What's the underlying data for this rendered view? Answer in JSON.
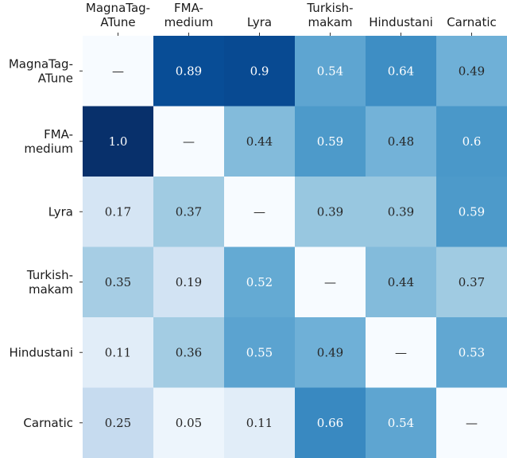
{
  "chart_data": {
    "type": "heatmap",
    "title": "",
    "xlabel": "",
    "ylabel": "",
    "x_labels": [
      [
        "MagnaTag-",
        "ATune"
      ],
      [
        "FMA-",
        "medium"
      ],
      [
        "Lyra"
      ],
      [
        "Turkish-",
        "makam"
      ],
      [
        "Hindustani"
      ],
      [
        "Carnatic"
      ]
    ],
    "y_labels": [
      [
        "MagnaTag-",
        "ATune"
      ],
      [
        "FMA-",
        "medium"
      ],
      [
        "Lyra"
      ],
      [
        "Turkish-",
        "makam"
      ],
      [
        "Hindustani"
      ],
      [
        "Carnatic"
      ]
    ],
    "values": [
      [
        null,
        0.89,
        0.9,
        0.54,
        0.64,
        0.49
      ],
      [
        1.0,
        null,
        0.44,
        0.59,
        0.48,
        0.6
      ],
      [
        0.17,
        0.37,
        null,
        0.39,
        0.39,
        0.59
      ],
      [
        0.35,
        0.19,
        0.52,
        null,
        0.44,
        0.37
      ],
      [
        0.11,
        0.36,
        0.55,
        0.49,
        null,
        0.53
      ],
      [
        0.25,
        0.05,
        0.11,
        0.66,
        0.54,
        null
      ]
    ],
    "cell_labels": [
      [
        "—",
        "0.89",
        "0.9",
        "0.54",
        "0.64",
        "0.49"
      ],
      [
        "1.0",
        "—",
        "0.44",
        "0.59",
        "0.48",
        "0.6"
      ],
      [
        "0.17",
        "0.37",
        "—",
        "0.39",
        "0.39",
        "0.59"
      ],
      [
        "0.35",
        "0.19",
        "0.52",
        "—",
        "0.44",
        "0.37"
      ],
      [
        "0.11",
        "0.36",
        "0.55",
        "0.49",
        "—",
        "0.53"
      ],
      [
        "0.25",
        "0.05",
        "0.11",
        "0.66",
        "0.54",
        "—"
      ]
    ],
    "value_range": [
      0,
      1
    ],
    "colormap": "Blues",
    "colors": {
      "low": "#f7fbff",
      "high": "#08306b",
      "text_dark": "#262626",
      "text_light": "#ffffff"
    }
  }
}
